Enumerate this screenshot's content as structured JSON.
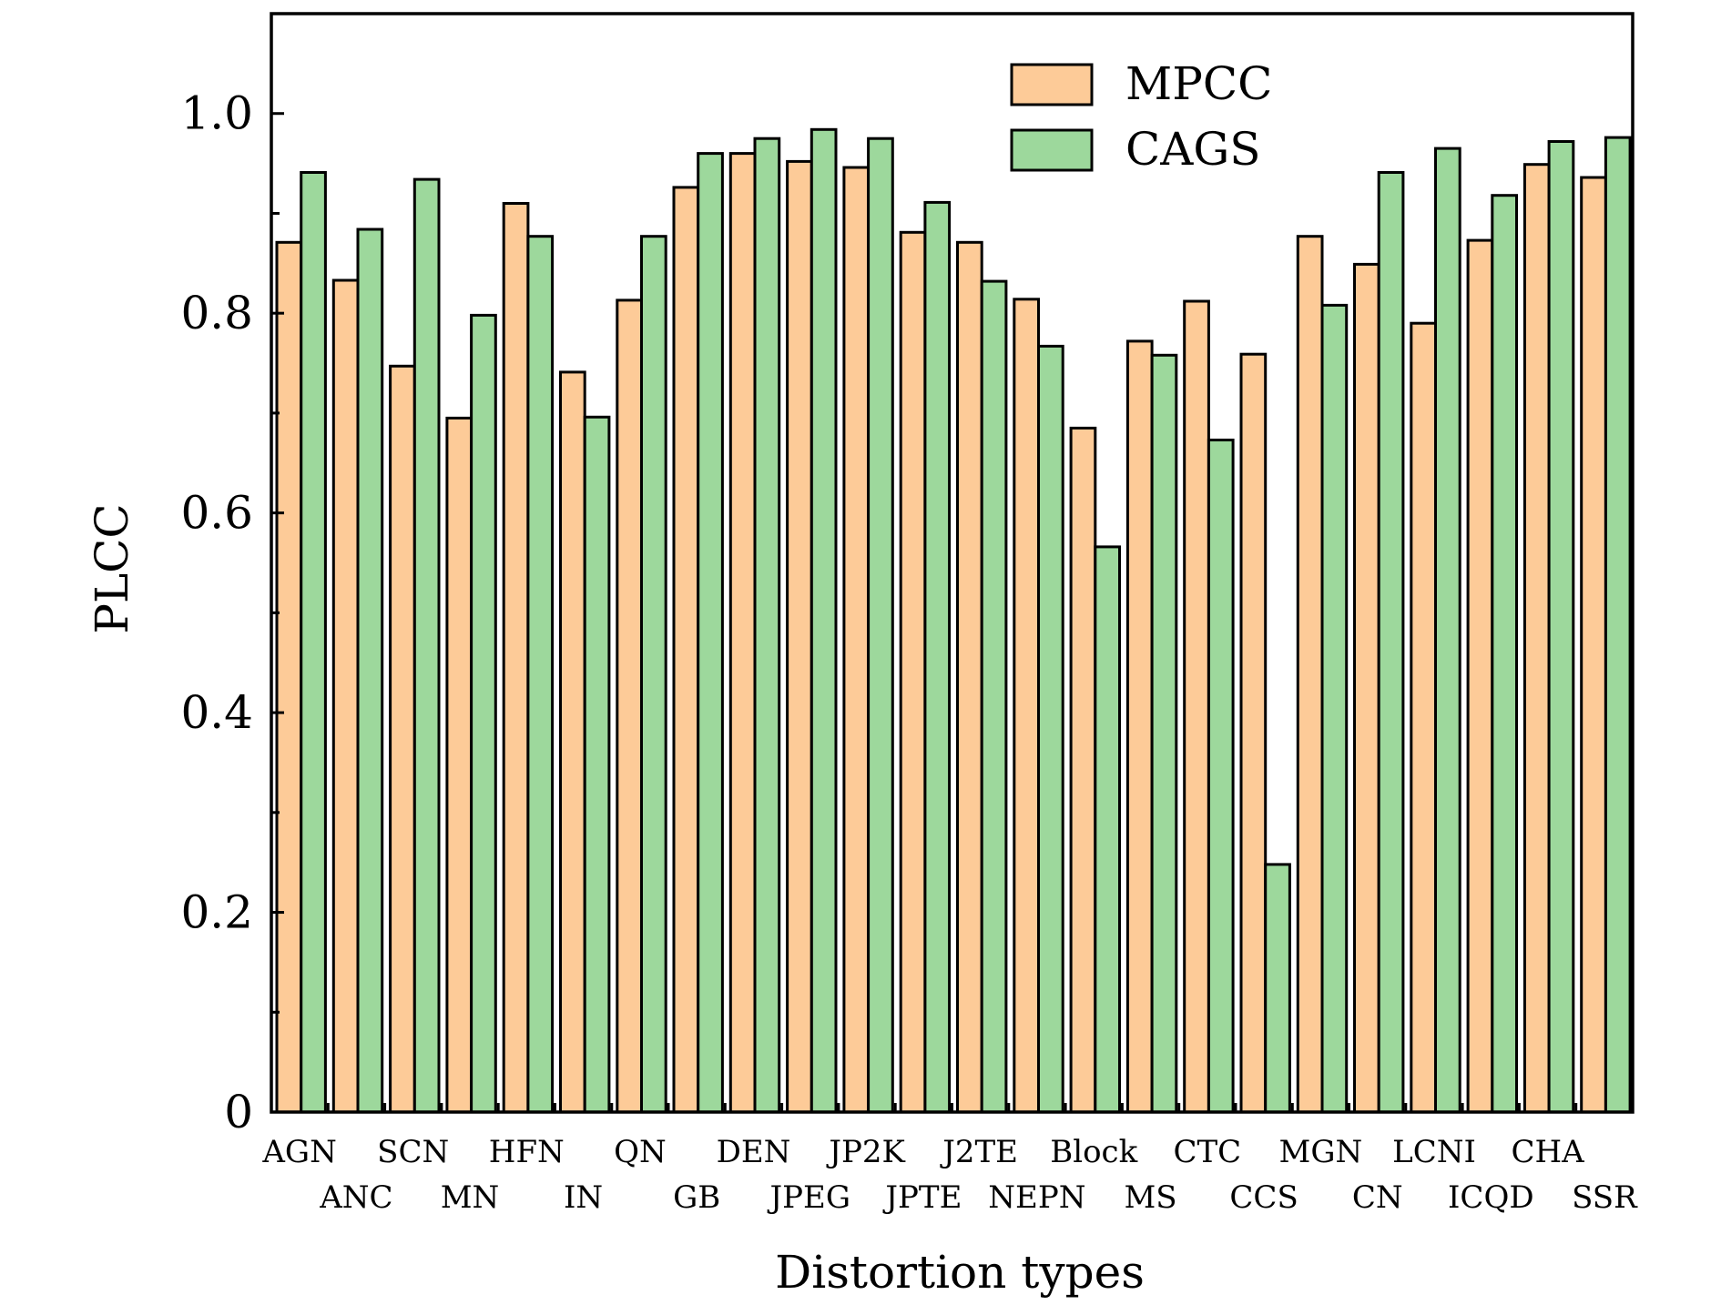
{
  "chart_data": {
    "type": "bar",
    "title": "",
    "xlabel": "Distortion types",
    "ylabel": "PLCC",
    "ylim": [
      0,
      1.1
    ],
    "y_ticks": [
      {
        "value": 0,
        "label": "0"
      },
      {
        "value": 0.2,
        "label": "0.2"
      },
      {
        "value": 0.4,
        "label": "0.4"
      },
      {
        "value": 0.6,
        "label": "0.6"
      },
      {
        "value": 0.8,
        "label": "0.8"
      },
      {
        "value": 1.0,
        "label": "1.0"
      }
    ],
    "grid": false,
    "legend_position": "top-right",
    "categories": [
      "AGN",
      "ANC",
      "SCN",
      "MN",
      "HFN",
      "IN",
      "QN",
      "GB",
      "DEN",
      "JPEG",
      "JP2K",
      "JPTE",
      "J2TE",
      "NEPN",
      "Block",
      "MS",
      "CTC",
      "CCS",
      "MGN",
      "CN",
      "LCNI",
      "ICQD",
      "CHA",
      "SSR"
    ],
    "series": [
      {
        "name": "MPCC",
        "color": "#FDCB98",
        "values": [
          0.871,
          0.833,
          0.747,
          0.695,
          0.91,
          0.741,
          0.813,
          0.926,
          0.96,
          0.952,
          0.946,
          0.881,
          0.871,
          0.814,
          0.685,
          0.772,
          0.812,
          0.759,
          0.877,
          0.849,
          0.79,
          0.873,
          0.949,
          0.936
        ]
      },
      {
        "name": "CAGS",
        "color": "#9DD89C",
        "values": [
          0.941,
          0.884,
          0.934,
          0.798,
          0.877,
          0.696,
          0.877,
          0.96,
          0.975,
          0.984,
          0.975,
          0.911,
          0.832,
          0.767,
          0.566,
          0.758,
          0.673,
          0.248,
          0.808,
          0.941,
          0.965,
          0.918,
          0.972,
          0.976
        ]
      }
    ]
  }
}
